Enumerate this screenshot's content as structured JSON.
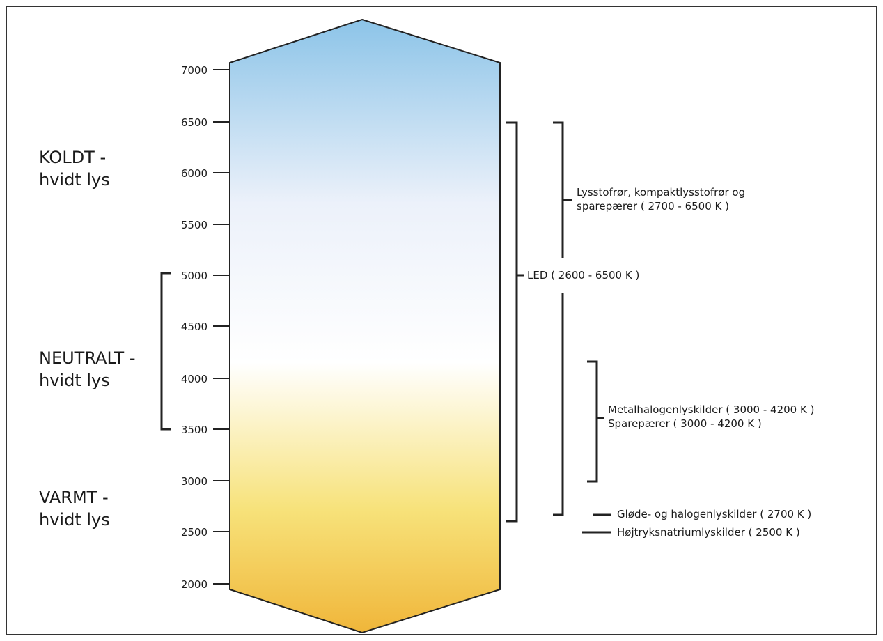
{
  "scale": {
    "ticks": [
      "7000",
      "6500",
      "6000",
      "5500",
      "5000",
      "4500",
      "4000",
      "3500",
      "3000",
      "2500",
      "2000"
    ],
    "gradient": {
      "top": "#8cc4e8",
      "mid_cool": "#ecf1fa",
      "neutral": "#ffffff",
      "warm": "#f7e27a",
      "bottom": "#f0b63a"
    }
  },
  "zones": {
    "cold": {
      "line1": "KOLDT -",
      "line2": "hvidt lys"
    },
    "neutral": {
      "line1": "NEUTRALT -",
      "line2": "hvidt lys"
    },
    "warm": {
      "line1": "VARMT -",
      "line2": "hvidt lys"
    }
  },
  "sources": {
    "led": "LED ( 2600 - 6500 K )",
    "fluorescent_line1": "Lysstofrør, kompaktlysstofrør og",
    "fluorescent_line2": "sparepærer ( 2700 - 6500 K )",
    "metal_halide": "Metalhalogenlyskilder ( 3000 - 4200 K )",
    "energy_saving": "Sparepærer ( 3000 - 4200 K )",
    "incandescent": "Gløde- og halogenlyskilder ( 2700 K )",
    "sodium": "Højtryksnatriumlyskilder ( 2500 K )"
  }
}
